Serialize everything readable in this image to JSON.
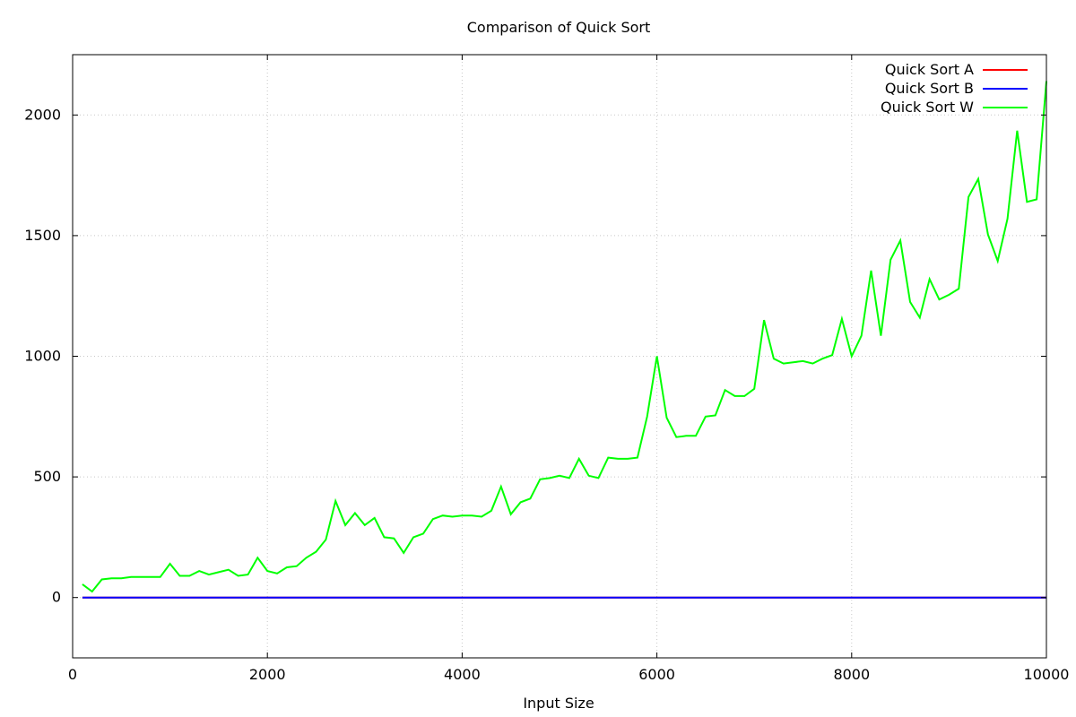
{
  "chart_data": {
    "type": "line",
    "title": "Comparison of Quick Sort",
    "xlabel": "Input Size",
    "ylabel": "",
    "xlim": [
      0,
      10000
    ],
    "ylim": [
      -250,
      2250
    ],
    "xticks": [
      0,
      2000,
      4000,
      6000,
      8000,
      10000
    ],
    "yticks": [
      0,
      500,
      1000,
      1500,
      2000
    ],
    "grid": true,
    "legend_position": "top-right",
    "x": [
      100,
      200,
      300,
      400,
      500,
      600,
      700,
      800,
      900,
      1000,
      1100,
      1200,
      1300,
      1400,
      1500,
      1600,
      1700,
      1800,
      1900,
      2000,
      2100,
      2200,
      2300,
      2400,
      2500,
      2600,
      2700,
      2800,
      2900,
      3000,
      3100,
      3200,
      3300,
      3400,
      3500,
      3600,
      3700,
      3800,
      3900,
      4000,
      4100,
      4200,
      4300,
      4400,
      4500,
      4600,
      4700,
      4800,
      4900,
      5000,
      5100,
      5200,
      5300,
      5400,
      5500,
      5600,
      5700,
      5800,
      5900,
      6000,
      6100,
      6200,
      6300,
      6400,
      6500,
      6600,
      6700,
      6800,
      6900,
      7000,
      7100,
      7200,
      7300,
      7400,
      7500,
      7600,
      7700,
      7800,
      7900,
      8000,
      8100,
      8200,
      8300,
      8400,
      8500,
      8600,
      8700,
      8800,
      8900,
      9000,
      9100,
      9200,
      9300,
      9400,
      9500,
      9600,
      9700,
      9800,
      9900,
      10000
    ],
    "series": [
      {
        "name": "Quick Sort A",
        "color": "#ff0000",
        "values": [
          0,
          0,
          0,
          0,
          0,
          0,
          0,
          0,
          0,
          0,
          0,
          0,
          0,
          0,
          0,
          0,
          0,
          0,
          0,
          0,
          0,
          0,
          0,
          0,
          0,
          0,
          0,
          0,
          0,
          0,
          0,
          0,
          0,
          0,
          0,
          0,
          0,
          0,
          0,
          0,
          0,
          0,
          0,
          0,
          0,
          0,
          0,
          0,
          0,
          0,
          0,
          0,
          0,
          0,
          0,
          0,
          0,
          0,
          0,
          0,
          0,
          0,
          0,
          0,
          0,
          0,
          0,
          0,
          0,
          0,
          0,
          0,
          0,
          0,
          0,
          0,
          0,
          0,
          0,
          0,
          0,
          0,
          0,
          0,
          0,
          0,
          0,
          0,
          0,
          0,
          0,
          0,
          0,
          0,
          0,
          0,
          0,
          0,
          0,
          0
        ]
      },
      {
        "name": "Quick Sort B",
        "color": "#0000ff",
        "values": [
          0,
          0,
          0,
          0,
          0,
          0,
          0,
          0,
          0,
          0,
          0,
          0,
          0,
          0,
          0,
          0,
          0,
          0,
          0,
          0,
          0,
          0,
          0,
          0,
          0,
          0,
          0,
          0,
          0,
          0,
          0,
          0,
          0,
          0,
          0,
          0,
          0,
          0,
          0,
          0,
          0,
          0,
          0,
          0,
          0,
          0,
          0,
          0,
          0,
          0,
          0,
          0,
          0,
          0,
          0,
          0,
          0,
          0,
          0,
          0,
          0,
          0,
          0,
          0,
          0,
          0,
          0,
          0,
          0,
          0,
          0,
          0,
          0,
          0,
          0,
          0,
          0,
          0,
          0,
          0,
          0,
          0,
          0,
          0,
          0,
          0,
          0,
          0,
          0,
          0,
          0,
          0,
          0,
          0,
          0,
          0,
          0,
          0,
          0,
          0
        ]
      },
      {
        "name": "Quick Sort W",
        "color": "#00ff00",
        "values": [
          55,
          25,
          75,
          80,
          80,
          85,
          85,
          85,
          85,
          140,
          90,
          90,
          110,
          95,
          105,
          115,
          90,
          95,
          165,
          110,
          100,
          125,
          130,
          165,
          190,
          240,
          400,
          300,
          350,
          300,
          330,
          250,
          245,
          185,
          250,
          265,
          325,
          340,
          335,
          340,
          340,
          335,
          360,
          460,
          345,
          395,
          410,
          490,
          495,
          505,
          495,
          575,
          505,
          495,
          580,
          575,
          575,
          580,
          750,
          1000,
          745,
          665,
          670,
          670,
          750,
          755,
          860,
          835,
          835,
          865,
          1150,
          990,
          970,
          975,
          980,
          970,
          990,
          1005,
          1155,
          1000,
          1085,
          1355,
          1085,
          1400,
          1480,
          1225,
          1160,
          1320,
          1235,
          1255,
          1280,
          1660,
          1735,
          1505,
          1395,
          1570,
          1935,
          1640,
          1650,
          2140
        ]
      }
    ]
  }
}
